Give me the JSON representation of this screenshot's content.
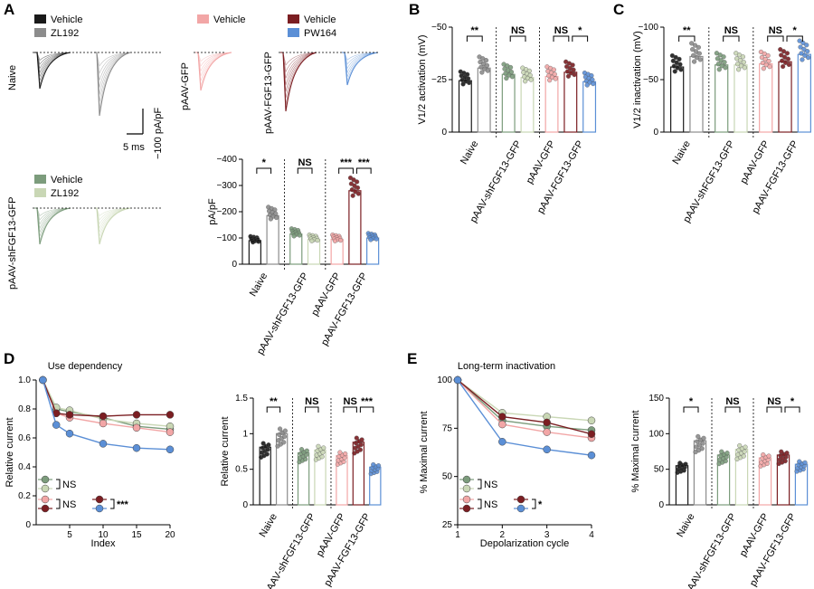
{
  "colors": {
    "vehicle_black": "#1a1a1a",
    "zl192_gray": "#8c8c8c",
    "sh_vehicle_green": "#7c9c7c",
    "sh_zl192_lightgreen": "#c9d7b5",
    "gfp_pink": "#f2a6a6",
    "fgf_darkred": "#7b1e22",
    "pw164_blue": "#5b8fd6"
  },
  "panels": {
    "A": "A",
    "B": "B",
    "C": "C",
    "D": "D",
    "E": "E"
  },
  "panelA": {
    "legend_naive": [
      "Vehicle",
      "ZL192"
    ],
    "legend_sh": [
      "Vehicle",
      "ZL192"
    ],
    "legend_gfp": [
      "Vehicle"
    ],
    "legend_fgf": [
      "Vehicle",
      "PW164"
    ],
    "row_naive": "Naive",
    "row_sh": "pAAV-shFGF13-GFP",
    "row_gfp": "pAAV-GFP",
    "row_fgf": "pAAV-FGF13-GFP",
    "scale_time": "5 ms",
    "scale_current": "−100 pA/pF"
  },
  "groups": [
    "Naive",
    "pAAV-shFGF13-GFP",
    "pAAV-GFP",
    "pAAV-FGF13-GFP"
  ],
  "chart_data": [
    {
      "id": "A_bar",
      "type": "bar",
      "ylabel": "pA/pF",
      "ylim": [
        0,
        -400
      ],
      "yticks": [
        0,
        -100,
        -200,
        -300,
        -400
      ],
      "yticklabels": [
        "0",
        "−100",
        "−200",
        "−300",
        "−400"
      ],
      "categories": [
        "Naive Vehicle",
        "Naive ZL192",
        "shFGF13 Vehicle",
        "shFGF13 ZL192",
        "GFP Vehicle",
        "FGF13 Vehicle",
        "FGF13 PW164"
      ],
      "values": [
        -90,
        -185,
        -115,
        -95,
        -95,
        -280,
        -100
      ],
      "sig": [
        {
          "a": 0,
          "b": 1,
          "text": "*"
        },
        {
          "a": 2,
          "b": 3,
          "text": "NS"
        },
        {
          "a": 4,
          "b": 5,
          "text": "***"
        },
        {
          "a": 5,
          "b": 6,
          "text": "***"
        }
      ]
    },
    {
      "id": "B",
      "type": "bar",
      "ylabel": "V1/2 activation (mV)",
      "ylim": [
        0,
        -50
      ],
      "yticks": [
        0,
        -25,
        -50
      ],
      "yticklabels": [
        "0",
        "−25",
        "−50"
      ],
      "categories": [
        "Naive Vehicle",
        "Naive ZL192",
        "shFGF13 Vehicle",
        "shFGF13 ZL192",
        "GFP Vehicle",
        "FGF13 Vehicle",
        "FGF13 PW164"
      ],
      "values": [
        -24.5,
        -30.5,
        -27.5,
        -26,
        -26.5,
        -28.5,
        -24
      ],
      "sig": [
        {
          "a": 0,
          "b": 1,
          "text": "**"
        },
        {
          "a": 2,
          "b": 3,
          "text": "NS"
        },
        {
          "a": 4,
          "b": 5,
          "text": "NS"
        },
        {
          "a": 5,
          "b": 6,
          "text": "*"
        }
      ]
    },
    {
      "id": "C",
      "type": "bar",
      "ylabel": "V1/2 inactivation (mV)",
      "ylim": [
        0,
        -100
      ],
      "yticks": [
        0,
        -50,
        -100
      ],
      "yticklabels": [
        "0",
        "−50",
        "−100"
      ],
      "categories": [
        "Naive Vehicle",
        "Naive ZL192",
        "shFGF13 Vehicle",
        "shFGF13 ZL192",
        "GFP Vehicle",
        "FGF13 Vehicle",
        "FGF13 PW164"
      ],
      "values": [
        -62,
        -72,
        -64,
        -64,
        -65,
        -67,
        -74
      ],
      "sig": [
        {
          "a": 0,
          "b": 1,
          "text": "**"
        },
        {
          "a": 2,
          "b": 3,
          "text": "NS"
        },
        {
          "a": 4,
          "b": 5,
          "text": "NS"
        },
        {
          "a": 5,
          "b": 6,
          "text": "*"
        }
      ]
    },
    {
      "id": "D_line",
      "type": "line",
      "title": "Use dependency",
      "xlabel": "Index",
      "ylabel": "Relative current",
      "xlim": [
        0,
        20
      ],
      "ylim": [
        0,
        1.0
      ],
      "xticks": [
        5,
        10,
        15,
        20
      ],
      "yticks": [
        0,
        0.2,
        0.4,
        0.6,
        0.8,
        1.0
      ],
      "yticklabels": [
        "0",
        "0.2",
        "0.4",
        "0.6",
        "0.8",
        "1.0"
      ],
      "x": [
        1,
        3,
        5,
        10,
        15,
        20
      ],
      "series": [
        {
          "name": "shFGF13 Vehicle",
          "values": [
            1.0,
            0.8,
            0.78,
            0.74,
            0.68,
            0.66
          ]
        },
        {
          "name": "shFGF13 ZL192",
          "values": [
            1.0,
            0.81,
            0.79,
            0.73,
            0.7,
            0.68
          ]
        },
        {
          "name": "GFP Vehicle",
          "values": [
            1.0,
            0.77,
            0.74,
            0.7,
            0.67,
            0.64
          ]
        },
        {
          "name": "FGF13 Vehicle",
          "values": [
            1.0,
            0.77,
            0.76,
            0.75,
            0.76,
            0.76
          ]
        },
        {
          "name": "FGF13 PW164",
          "values": [
            1.0,
            0.69,
            0.63,
            0.56,
            0.53,
            0.52
          ]
        }
      ],
      "legend_sig": [
        "NS",
        "NS",
        "***"
      ]
    },
    {
      "id": "D_bar",
      "type": "bar",
      "ylabel": "Relative current",
      "ylim": [
        0,
        1.5
      ],
      "yticks": [
        0,
        0.5,
        1,
        1.5
      ],
      "yticklabels": [
        "0",
        "0.5",
        "1",
        "1.5"
      ],
      "categories": [
        "Naive Vehicle",
        "Naive ZL192",
        "shFGF13 Vehicle",
        "shFGF13 ZL192",
        "GFP Vehicle",
        "FGF13 Vehicle",
        "FGF13 PW164"
      ],
      "values": [
        0.81,
        1.0,
        0.73,
        0.77,
        0.69,
        0.88,
        0.53
      ],
      "sig": [
        {
          "a": 0,
          "b": 1,
          "text": "**"
        },
        {
          "a": 2,
          "b": 3,
          "text": "NS"
        },
        {
          "a": 4,
          "b": 5,
          "text": "NS"
        },
        {
          "a": 5,
          "b": 6,
          "text": "***"
        }
      ]
    },
    {
      "id": "E_line",
      "type": "line",
      "title": "Long-term inactivation",
      "xlabel": "Depolarization cycle",
      "ylabel": "% Maximal current",
      "xlim": [
        1,
        4
      ],
      "ylim": [
        25,
        100
      ],
      "xticks": [
        1,
        2,
        3,
        4
      ],
      "yticks": [
        25,
        50,
        75,
        100
      ],
      "yticklabels": [
        "25",
        "50",
        "75",
        "100"
      ],
      "x": [
        1,
        2,
        3,
        4
      ],
      "series": [
        {
          "name": "shFGF13 Vehicle",
          "values": [
            100,
            79,
            76,
            74
          ]
        },
        {
          "name": "shFGF13 ZL192",
          "values": [
            100,
            83,
            81,
            79
          ]
        },
        {
          "name": "GFP Vehicle",
          "values": [
            100,
            77,
            73,
            70
          ]
        },
        {
          "name": "FGF13 Vehicle",
          "values": [
            100,
            81,
            78,
            72
          ]
        },
        {
          "name": "FGF13 PW164",
          "values": [
            100,
            68,
            64,
            61
          ]
        }
      ],
      "legend_sig": [
        "NS",
        "NS",
        "*"
      ]
    },
    {
      "id": "E_bar",
      "type": "bar",
      "ylabel": "% Maximal current",
      "ylim": [
        0,
        150
      ],
      "yticks": [
        0,
        50,
        100,
        150
      ],
      "yticklabels": [
        "0",
        "50",
        "100",
        "150"
      ],
      "categories": [
        "Naive Vehicle",
        "Naive ZL192",
        "shFGF13 Vehicle",
        "shFGF13 ZL192",
        "GFP Vehicle",
        "FGF13 Vehicle",
        "FGF13 PW164"
      ],
      "values": [
        55,
        90,
        70,
        78,
        66,
        70,
        57
      ],
      "sig": [
        {
          "a": 0,
          "b": 1,
          "text": "*"
        },
        {
          "a": 2,
          "b": 3,
          "text": "NS"
        },
        {
          "a": 4,
          "b": 5,
          "text": "NS"
        },
        {
          "a": 5,
          "b": 6,
          "text": "*"
        }
      ]
    }
  ]
}
